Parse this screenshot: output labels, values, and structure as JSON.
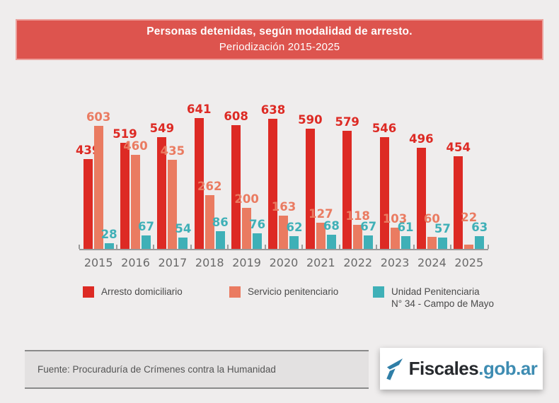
{
  "title": {
    "line1": "Personas detenidas, según modalidad de arresto.",
    "line2": "Periodización 2015-2025"
  },
  "chart_data": {
    "type": "bar",
    "title": "Personas detenidas, según modalidad de arresto. Periodización 2015-2025",
    "categories": [
      "2015",
      "2016",
      "2017",
      "2018",
      "2019",
      "2020",
      "2021",
      "2022",
      "2023",
      "2024",
      "2025"
    ],
    "series": [
      {
        "key": "arresto-domiciliario",
        "name": "Arresto domiciliario",
        "color": "#dd2a24",
        "values": [
          439,
          519,
          549,
          641,
          608,
          638,
          590,
          579,
          546,
          496,
          454
        ]
      },
      {
        "key": "servicio-penitenciario",
        "name": "Servicio penitenciario",
        "color": "#ea7b61",
        "values": [
          603,
          460,
          435,
          262,
          200,
          163,
          127,
          118,
          103,
          60,
          22
        ]
      },
      {
        "key": "unidad-penitenciaria-34",
        "name": "Unidad Penitenciaria N° 34 - Campo de Mayo",
        "color": "#3fb0b7",
        "values": [
          28,
          67,
          54,
          86,
          76,
          62,
          68,
          67,
          61,
          57,
          63
        ]
      }
    ],
    "xlabel": "",
    "ylabel": "",
    "ylim": [
      0,
      660
    ],
    "grid": false,
    "value_labels": true,
    "legend_position": "bottom"
  },
  "legend": {
    "items": [
      {
        "lines": [
          "Arresto domiciliario"
        ],
        "color": "#dd2a24"
      },
      {
        "lines": [
          "Servicio penitenciario"
        ],
        "color": "#ea7b61"
      },
      {
        "lines": [
          "Unidad Penitenciaria",
          "N° 34 - Campo de Mayo"
        ],
        "color": "#3fb0b7"
      }
    ]
  },
  "footer": {
    "source": "Fuente: Procuraduría de Crímenes contra la Humanidad"
  },
  "logo": {
    "text_dark": "Fiscales",
    "text_accent": ".gob.ar",
    "icon_color": "#2f7ea7"
  },
  "colors": {
    "background": "#efeded",
    "banner": "#dd544e",
    "axis": "#9b9b9b",
    "year_labels": "#6a6a6a"
  }
}
